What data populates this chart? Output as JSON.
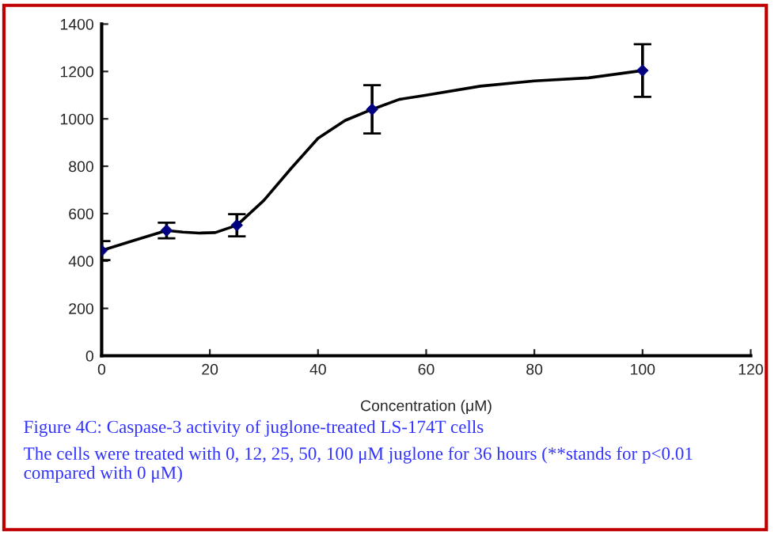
{
  "chart_data": {
    "type": "scatter",
    "xlabel": "Concentration (μM)",
    "annotations": [
      "Figure 4C: Caspase-3 activity of juglone-treated LS-174T cells",
      "The cells were treated with 0, 12, 25, 50, 100 μM juglone for 36 hours (**stands for p<0.01 compared with 0 μM)"
    ],
    "series": [
      {
        "type": "line",
        "color": "#000000",
        "marker": "none",
        "x": [
          0,
          6,
          12,
          15,
          18,
          21,
          25,
          30,
          35,
          40,
          45,
          50,
          55,
          60,
          70,
          80,
          90,
          100
        ],
        "values": [
          444,
          487,
          529,
          522,
          518,
          520,
          551,
          656,
          790,
          918,
          993,
          1040,
          1082,
          1100,
          1138,
          1160,
          1173,
          1204
        ]
      },
      {
        "color": "#000080",
        "marker": "diamond",
        "x": [
          0,
          12,
          25,
          50,
          100
        ],
        "values": [
          444,
          529,
          551,
          1040,
          1204
        ],
        "errors": [
          40,
          33,
          47,
          102,
          111
        ]
      }
    ],
    "xlim": [
      0,
      120
    ],
    "xticks": [
      0,
      20,
      40,
      60,
      80,
      100,
      120
    ],
    "ylim": [
      0,
      1400
    ],
    "yticks": [
      0,
      200,
      400,
      600,
      800,
      1000,
      1200,
      1400
    ],
    "grid": false,
    "legend": false
  }
}
